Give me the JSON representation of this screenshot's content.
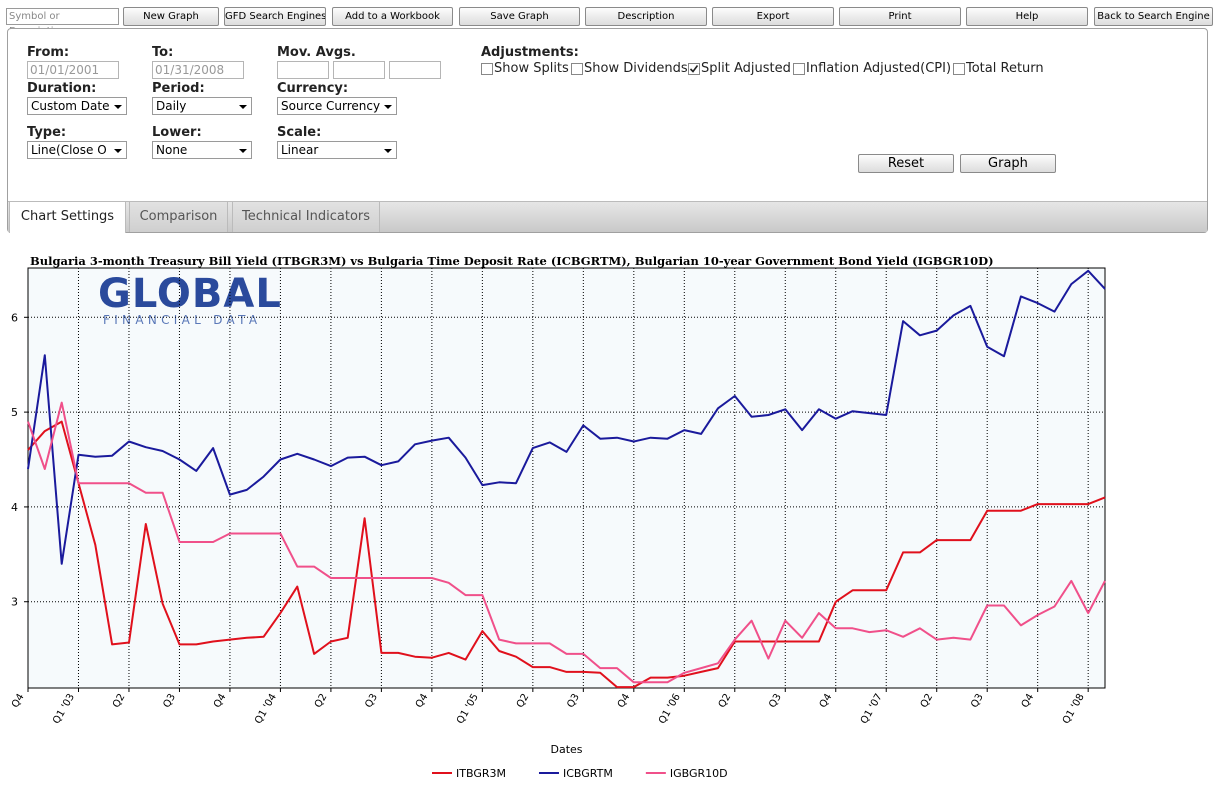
{
  "toolbar": {
    "search_placeholder": "Symbol or Description",
    "buttons": [
      "New Graph",
      "GFD Search Engines",
      "Add to a Workbook",
      "Save Graph",
      "Description",
      "Export",
      "Print",
      "Help",
      "Back to Search Engine"
    ]
  },
  "settings": {
    "fields": [
      {
        "label": "From:",
        "kind": "input",
        "value": "01/01/2001"
      },
      {
        "label": "To:",
        "kind": "input",
        "value": "01/31/2008"
      },
      {
        "label": "Mov. Avgs.",
        "kind": "multi-input"
      },
      {
        "label": "Duration:",
        "kind": "select",
        "value": "Custom Date"
      },
      {
        "label": "Period:",
        "kind": "select",
        "value": "Daily"
      },
      {
        "label": "Currency:",
        "kind": "select",
        "value": "Source Currency"
      },
      {
        "label": "Type:",
        "kind": "select",
        "value": "Line(Close O"
      },
      {
        "label": "Lower:",
        "kind": "select",
        "value": "None"
      },
      {
        "label": "Scale:",
        "kind": "select",
        "value": "Linear"
      }
    ],
    "adjustments": {
      "label": "Adjustments:",
      "options": [
        {
          "label": "Show Splits",
          "checked": false
        },
        {
          "label": "Show Dividends",
          "checked": false
        },
        {
          "label": "Split Adjusted",
          "checked": true
        },
        {
          "label": "Inflation Adjusted(CPI)",
          "checked": false
        },
        {
          "label": "Total Return",
          "checked": false
        }
      ]
    },
    "buttons": [
      "Reset",
      "Graph"
    ]
  },
  "tabs": [
    {
      "label": "Chart Settings",
      "active": true
    },
    {
      "label": "Comparison",
      "active": false
    },
    {
      "label": "Technical Indicators",
      "active": false
    }
  ],
  "logo": {
    "name": "GLOBAL",
    "tagline": "FINANCIAL DATA"
  },
  "chart_data": {
    "type": "line",
    "title": "Bulgaria 3-month Treasury Bill Yield (ITBGR3M)  vs  Bulgaria Time Deposit Rate (ICBGRTM), Bulgarian 10-year Government Bond Yield (IGBGR10D)",
    "x_label": "Dates",
    "categories": [
      "Q4",
      null,
      null,
      "Q1 '03",
      null,
      null,
      "Q2",
      null,
      null,
      "Q3",
      null,
      null,
      "Q4",
      null,
      null,
      "Q1 '04",
      null,
      null,
      "Q2",
      null,
      null,
      "Q3",
      null,
      null,
      "Q4",
      null,
      null,
      "Q1 '05",
      null,
      null,
      "Q2",
      null,
      null,
      "Q3",
      null,
      null,
      "Q4",
      null,
      null,
      "Q1 '06",
      null,
      null,
      "Q2",
      null,
      null,
      "Q3",
      null,
      null,
      "Q4",
      null,
      null,
      "Q1 '07",
      null,
      null,
      "Q2",
      null,
      null,
      "Q3",
      null,
      null,
      "Q4",
      null,
      null,
      "Q1 '08",
      null
    ],
    "series": [
      {
        "name": "ITBGR3M",
        "color": "#e0101c",
        "values": [
          4.6,
          4.8,
          4.9,
          4.25,
          3.6,
          2.55,
          2.57,
          3.82,
          2.98,
          2.55,
          2.55,
          2.58,
          2.6,
          2.62,
          2.63,
          2.88,
          3.16,
          2.45,
          2.58,
          2.62,
          3.88,
          2.46,
          2.46,
          2.42,
          2.41,
          2.46,
          2.39,
          2.69,
          2.48,
          2.42,
          2.31,
          2.31,
          2.26,
          2.26,
          2.25,
          2.1,
          2.1,
          2.2,
          2.2,
          2.22,
          2.26,
          2.3,
          2.58,
          2.58,
          2.58,
          2.58,
          2.58,
          2.58,
          3.0,
          3.12,
          3.12,
          3.12,
          3.52,
          3.52,
          3.65,
          3.65,
          3.65,
          3.96,
          3.96,
          3.96,
          4.03,
          4.03,
          4.03,
          4.03,
          4.1
        ]
      },
      {
        "name": "ICBGRTM",
        "color": "#1a1a9c",
        "values": [
          4.4,
          5.6,
          3.4,
          4.55,
          4.53,
          4.54,
          4.69,
          4.63,
          4.59,
          4.5,
          4.38,
          4.62,
          4.13,
          4.18,
          4.32,
          4.5,
          4.56,
          4.5,
          4.43,
          4.52,
          4.53,
          4.44,
          4.48,
          4.66,
          4.7,
          4.73,
          4.52,
          4.23,
          4.26,
          4.25,
          4.62,
          4.68,
          4.58,
          4.86,
          4.72,
          4.73,
          4.69,
          4.73,
          4.72,
          4.81,
          4.77,
          5.04,
          5.17,
          4.95,
          4.97,
          5.03,
          4.81,
          5.03,
          4.93,
          5.01,
          4.99,
          4.97,
          5.96,
          5.81,
          5.86,
          6.02,
          6.12,
          5.69,
          5.59,
          6.22,
          6.15,
          6.06,
          6.35,
          6.49,
          6.3
        ]
      },
      {
        "name": "IGBGR10D",
        "color": "#f0508a",
        "values": [
          4.9,
          4.4,
          5.1,
          4.25,
          4.25,
          4.25,
          4.25,
          4.15,
          4.15,
          3.63,
          3.63,
          3.63,
          3.72,
          3.72,
          3.72,
          3.72,
          3.37,
          3.37,
          3.25,
          3.25,
          3.25,
          3.25,
          3.25,
          3.25,
          3.25,
          3.2,
          3.07,
          3.07,
          2.6,
          2.56,
          2.56,
          2.56,
          2.45,
          2.45,
          2.3,
          2.3,
          2.15,
          2.15,
          2.15,
          2.25,
          2.3,
          2.35,
          2.6,
          2.8,
          2.4,
          2.8,
          2.62,
          2.88,
          2.72,
          2.72,
          2.68,
          2.7,
          2.63,
          2.72,
          2.6,
          2.62,
          2.6,
          2.96,
          2.96,
          2.75,
          2.86,
          2.95,
          3.22,
          2.88,
          3.22
        ]
      }
    ],
    "ylim": [
      2.09,
      6.52
    ],
    "yticks": [
      3,
      4,
      5,
      6
    ],
    "grid": true
  }
}
